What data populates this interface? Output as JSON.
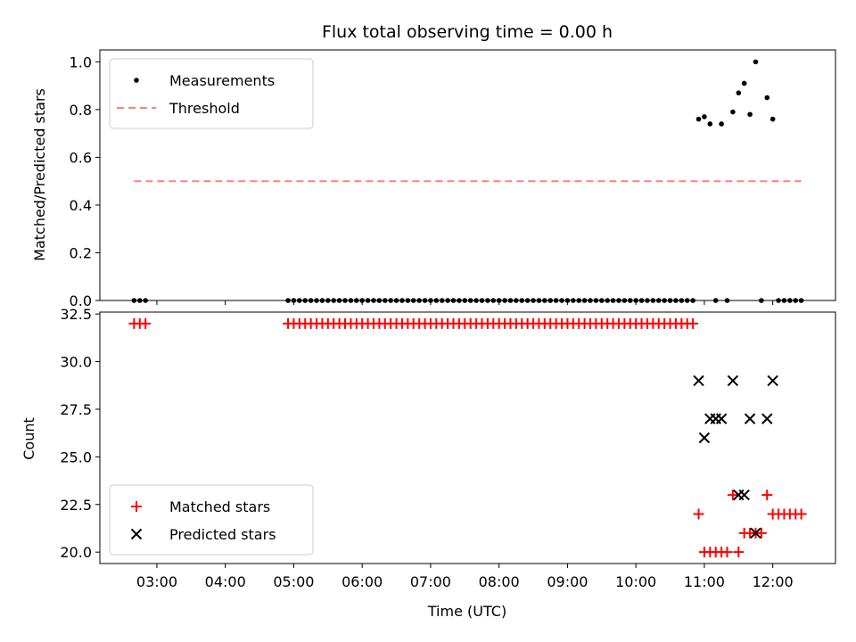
{
  "chart_data": [
    {
      "type": "scatter",
      "title": "Flux total observing time = 0.00 h",
      "xlabel": "",
      "ylabel": "Matched/Predicted stars",
      "ylim": [
        0,
        1.05
      ],
      "yticks": [
        "0.0",
        "0.2",
        "0.4",
        "0.6",
        "0.8",
        "1.0"
      ],
      "x_time_range": [
        "02:10",
        "12:55"
      ],
      "legend_position": "upper-left",
      "series": [
        {
          "name": "Measurements",
          "marker": "dot",
          "color": "#000000",
          "points": [
            [
              "02:40",
              0
            ],
            [
              "02:45",
              0
            ],
            [
              "02:50",
              0
            ],
            [
              "04:55",
              0
            ],
            [
              "05:00",
              0
            ],
            [
              "05:05",
              0
            ],
            [
              "05:10",
              0
            ],
            [
              "05:15",
              0
            ],
            [
              "05:20",
              0
            ],
            [
              "05:25",
              0
            ],
            [
              "05:30",
              0
            ],
            [
              "05:35",
              0
            ],
            [
              "05:40",
              0
            ],
            [
              "05:45",
              0
            ],
            [
              "05:50",
              0
            ],
            [
              "05:55",
              0
            ],
            [
              "06:00",
              0
            ],
            [
              "06:05",
              0
            ],
            [
              "06:10",
              0
            ],
            [
              "06:15",
              0
            ],
            [
              "06:20",
              0
            ],
            [
              "06:25",
              0
            ],
            [
              "06:30",
              0
            ],
            [
              "06:35",
              0
            ],
            [
              "06:40",
              0
            ],
            [
              "06:45",
              0
            ],
            [
              "06:50",
              0
            ],
            [
              "06:55",
              0
            ],
            [
              "07:00",
              0
            ],
            [
              "07:05",
              0
            ],
            [
              "07:10",
              0
            ],
            [
              "07:15",
              0
            ],
            [
              "07:20",
              0
            ],
            [
              "07:25",
              0
            ],
            [
              "07:30",
              0
            ],
            [
              "07:35",
              0
            ],
            [
              "07:40",
              0
            ],
            [
              "07:45",
              0
            ],
            [
              "07:50",
              0
            ],
            [
              "07:55",
              0
            ],
            [
              "08:00",
              0
            ],
            [
              "08:05",
              0
            ],
            [
              "08:10",
              0
            ],
            [
              "08:15",
              0
            ],
            [
              "08:20",
              0
            ],
            [
              "08:25",
              0
            ],
            [
              "08:30",
              0
            ],
            [
              "08:35",
              0
            ],
            [
              "08:40",
              0
            ],
            [
              "08:45",
              0
            ],
            [
              "08:50",
              0
            ],
            [
              "08:55",
              0
            ],
            [
              "09:00",
              0
            ],
            [
              "09:05",
              0
            ],
            [
              "09:10",
              0
            ],
            [
              "09:15",
              0
            ],
            [
              "09:20",
              0
            ],
            [
              "09:25",
              0
            ],
            [
              "09:30",
              0
            ],
            [
              "09:35",
              0
            ],
            [
              "09:40",
              0
            ],
            [
              "09:45",
              0
            ],
            [
              "09:50",
              0
            ],
            [
              "09:55",
              0
            ],
            [
              "10:00",
              0
            ],
            [
              "10:05",
              0
            ],
            [
              "10:10",
              0
            ],
            [
              "10:15",
              0
            ],
            [
              "10:20",
              0
            ],
            [
              "10:25",
              0
            ],
            [
              "10:30",
              0
            ],
            [
              "10:35",
              0
            ],
            [
              "10:40",
              0
            ],
            [
              "10:45",
              0
            ],
            [
              "10:50",
              0
            ],
            [
              "10:55",
              0.76
            ],
            [
              "11:00",
              0.77
            ],
            [
              "11:05",
              0.74
            ],
            [
              "11:10",
              0
            ],
            [
              "11:15",
              0.74
            ],
            [
              "11:20",
              0
            ],
            [
              "11:25",
              0.79
            ],
            [
              "11:30",
              0.87
            ],
            [
              "11:35",
              0.91
            ],
            [
              "11:40",
              0.78
            ],
            [
              "11:45",
              1.0
            ],
            [
              "11:50",
              0
            ],
            [
              "11:55",
              0.85
            ],
            [
              "12:00",
              0.76
            ],
            [
              "12:05",
              0
            ],
            [
              "12:10",
              0
            ],
            [
              "12:15",
              0
            ],
            [
              "12:20",
              0
            ],
            [
              "12:25",
              0
            ]
          ]
        },
        {
          "name": "Threshold",
          "marker": "dashed-line",
          "color": "#ff7f7f",
          "points": [
            [
              "02:40",
              0.5
            ],
            [
              "12:25",
              0.5
            ]
          ]
        }
      ]
    },
    {
      "type": "scatter",
      "title": "",
      "xlabel": "Time (UTC)",
      "ylabel": "Count",
      "ylim": [
        19.4,
        32.6
      ],
      "yticks": [
        "20.0",
        "22.5",
        "25.0",
        "27.5",
        "30.0",
        "32.5"
      ],
      "x_time_range": [
        "02:10",
        "12:55"
      ],
      "xticks": [
        "03:00",
        "04:00",
        "05:00",
        "06:00",
        "07:00",
        "08:00",
        "09:00",
        "10:00",
        "11:00",
        "12:00"
      ],
      "legend_position": "lower-left",
      "series": [
        {
          "name": "Matched stars",
          "marker": "plus",
          "color": "#ff0000",
          "points": [
            [
              "02:40",
              32
            ],
            [
              "02:45",
              32
            ],
            [
              "02:50",
              32
            ],
            [
              "04:55",
              32
            ],
            [
              "05:00",
              32
            ],
            [
              "05:05",
              32
            ],
            [
              "05:10",
              32
            ],
            [
              "05:15",
              32
            ],
            [
              "05:20",
              32
            ],
            [
              "05:25",
              32
            ],
            [
              "05:30",
              32
            ],
            [
              "05:35",
              32
            ],
            [
              "05:40",
              32
            ],
            [
              "05:45",
              32
            ],
            [
              "05:50",
              32
            ],
            [
              "05:55",
              32
            ],
            [
              "06:00",
              32
            ],
            [
              "06:05",
              32
            ],
            [
              "06:10",
              32
            ],
            [
              "06:15",
              32
            ],
            [
              "06:20",
              32
            ],
            [
              "06:25",
              32
            ],
            [
              "06:30",
              32
            ],
            [
              "06:35",
              32
            ],
            [
              "06:40",
              32
            ],
            [
              "06:45",
              32
            ],
            [
              "06:50",
              32
            ],
            [
              "06:55",
              32
            ],
            [
              "07:00",
              32
            ],
            [
              "07:05",
              32
            ],
            [
              "07:10",
              32
            ],
            [
              "07:15",
              32
            ],
            [
              "07:20",
              32
            ],
            [
              "07:25",
              32
            ],
            [
              "07:30",
              32
            ],
            [
              "07:35",
              32
            ],
            [
              "07:40",
              32
            ],
            [
              "07:45",
              32
            ],
            [
              "07:50",
              32
            ],
            [
              "07:55",
              32
            ],
            [
              "08:00",
              32
            ],
            [
              "08:05",
              32
            ],
            [
              "08:10",
              32
            ],
            [
              "08:15",
              32
            ],
            [
              "08:20",
              32
            ],
            [
              "08:25",
              32
            ],
            [
              "08:30",
              32
            ],
            [
              "08:35",
              32
            ],
            [
              "08:40",
              32
            ],
            [
              "08:45",
              32
            ],
            [
              "08:50",
              32
            ],
            [
              "08:55",
              32
            ],
            [
              "09:00",
              32
            ],
            [
              "09:05",
              32
            ],
            [
              "09:10",
              32
            ],
            [
              "09:15",
              32
            ],
            [
              "09:20",
              32
            ],
            [
              "09:25",
              32
            ],
            [
              "09:30",
              32
            ],
            [
              "09:35",
              32
            ],
            [
              "09:40",
              32
            ],
            [
              "09:45",
              32
            ],
            [
              "09:50",
              32
            ],
            [
              "09:55",
              32
            ],
            [
              "10:00",
              32
            ],
            [
              "10:05",
              32
            ],
            [
              "10:10",
              32
            ],
            [
              "10:15",
              32
            ],
            [
              "10:20",
              32
            ],
            [
              "10:25",
              32
            ],
            [
              "10:30",
              32
            ],
            [
              "10:35",
              32
            ],
            [
              "10:40",
              32
            ],
            [
              "10:45",
              32
            ],
            [
              "10:50",
              32
            ],
            [
              "10:55",
              22
            ],
            [
              "11:00",
              20
            ],
            [
              "11:05",
              20
            ],
            [
              "11:10",
              20
            ],
            [
              "11:15",
              20
            ],
            [
              "11:20",
              20
            ],
            [
              "11:25",
              23
            ],
            [
              "11:30",
              20
            ],
            [
              "11:35",
              21
            ],
            [
              "11:40",
              21
            ],
            [
              "11:45",
              21
            ],
            [
              "11:50",
              21
            ],
            [
              "11:55",
              23
            ],
            [
              "12:00",
              22
            ],
            [
              "12:05",
              22
            ],
            [
              "12:10",
              22
            ],
            [
              "12:15",
              22
            ],
            [
              "12:20",
              22
            ],
            [
              "12:25",
              22
            ]
          ]
        },
        {
          "name": "Predicted stars",
          "marker": "x",
          "color": "#000000",
          "points": [
            [
              "10:55",
              29
            ],
            [
              "11:00",
              26
            ],
            [
              "11:05",
              27
            ],
            [
              "11:10",
              27
            ],
            [
              "11:15",
              27
            ],
            [
              "11:25",
              29
            ],
            [
              "11:30",
              23
            ],
            [
              "11:35",
              23
            ],
            [
              "11:40",
              27
            ],
            [
              "11:45",
              21
            ],
            [
              "11:55",
              27
            ],
            [
              "12:00",
              29
            ]
          ]
        }
      ]
    }
  ]
}
